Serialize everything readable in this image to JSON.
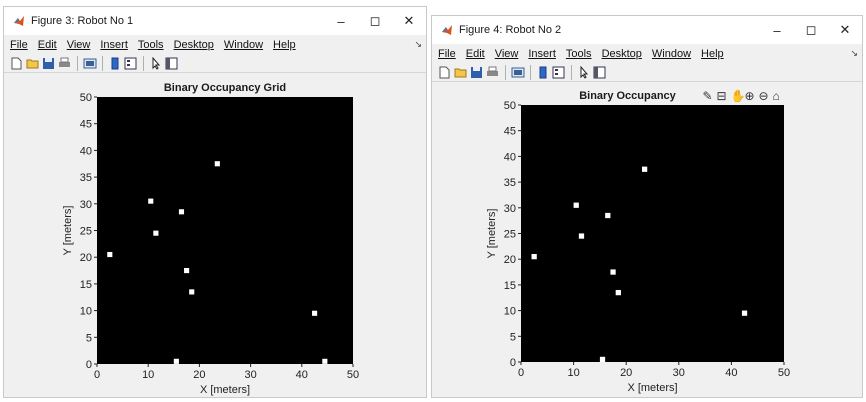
{
  "figures": [
    {
      "id": "fig3",
      "window_title": "Figure 3: Robot No 1",
      "menu": [
        "File",
        "Edit",
        "View",
        "Insert",
        "Tools",
        "Desktop",
        "Window",
        "Help"
      ],
      "axes_toolbar_visible": false,
      "chart_data": {
        "type": "scatter",
        "title": "Binary Occupancy Grid",
        "xlabel": "X [meters]",
        "ylabel": "Y [meters]",
        "xlim": [
          0,
          50
        ],
        "ylim": [
          0,
          50
        ],
        "xticks": [
          0,
          10,
          20,
          30,
          40,
          50
        ],
        "yticks": [
          0,
          5,
          10,
          15,
          20,
          25,
          30,
          35,
          40,
          45,
          50
        ],
        "background": "#000000",
        "marker_color": "#ffffff",
        "grid": false,
        "occupied_cells": [
          {
            "x": 2.5,
            "y": 20.5
          },
          {
            "x": 10.5,
            "y": 30.5
          },
          {
            "x": 11.5,
            "y": 24.5
          },
          {
            "x": 16.5,
            "y": 28.5
          },
          {
            "x": 17.5,
            "y": 17.5
          },
          {
            "x": 18.5,
            "y": 13.5
          },
          {
            "x": 23.5,
            "y": 37.5
          },
          {
            "x": 15.5,
            "y": 0.5
          },
          {
            "x": 42.5,
            "y": 9.5
          },
          {
            "x": 44.5,
            "y": 0.5
          }
        ]
      }
    },
    {
      "id": "fig4",
      "window_title": "Figure 4: Robot No 2",
      "menu": [
        "File",
        "Edit",
        "View",
        "Insert",
        "Tools",
        "Desktop",
        "Window",
        "Help"
      ],
      "axes_toolbar_visible": true,
      "chart_data": {
        "type": "scatter",
        "title": "Binary Occupancy",
        "xlabel": "X [meters]",
        "ylabel": "Y [meters]",
        "xlim": [
          0,
          50
        ],
        "ylim": [
          0,
          50
        ],
        "xticks": [
          0,
          10,
          20,
          30,
          40,
          50
        ],
        "yticks": [
          0,
          5,
          10,
          15,
          20,
          25,
          30,
          35,
          40,
          45,
          50
        ],
        "background": "#000000",
        "marker_color": "#ffffff",
        "grid": false,
        "occupied_cells": [
          {
            "x": 2.5,
            "y": 20.5
          },
          {
            "x": 10.5,
            "y": 30.5
          },
          {
            "x": 11.5,
            "y": 24.5
          },
          {
            "x": 16.5,
            "y": 28.5
          },
          {
            "x": 17.5,
            "y": 17.5
          },
          {
            "x": 18.5,
            "y": 13.5
          },
          {
            "x": 23.5,
            "y": 37.5
          },
          {
            "x": 15.5,
            "y": 0.5
          },
          {
            "x": 42.5,
            "y": 9.5
          }
        ]
      }
    }
  ],
  "icons": {
    "titlebar": [
      "matlab-logo-icon"
    ],
    "window_controls": [
      "minimize-icon",
      "maximize-icon",
      "close-icon"
    ],
    "toolbar": [
      "new-figure-icon",
      "open-file-icon",
      "save-icon",
      "print-icon",
      "link-plot-icon",
      "insert-colorbar-icon",
      "insert-legend-icon",
      "edit-plot-icon",
      "property-inspector-icon"
    ],
    "axes_toolbar": [
      "brush-icon",
      "data-tips-icon",
      "pan-icon",
      "zoom-in-icon",
      "zoom-out-icon",
      "restore-view-icon"
    ]
  }
}
